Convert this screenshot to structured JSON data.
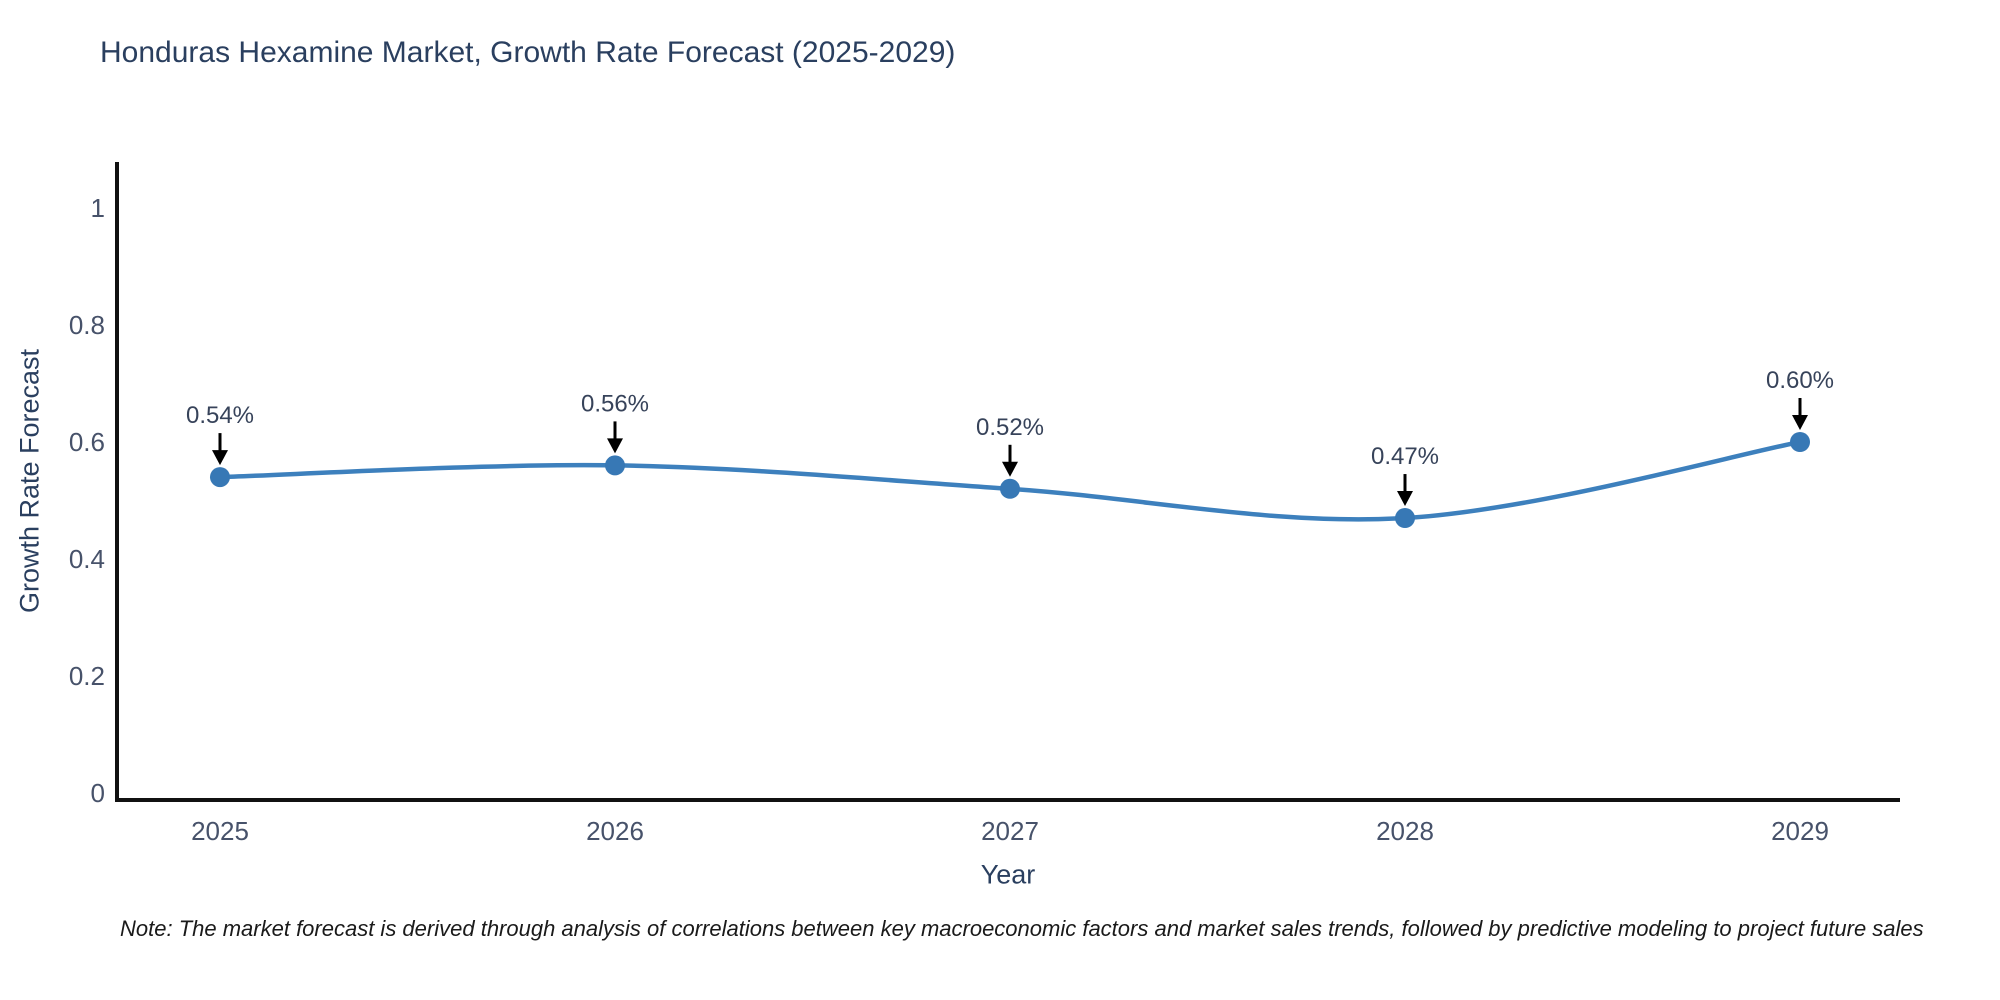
{
  "title": "Honduras Hexamine Market, Growth Rate Forecast (2025-2029)",
  "footnote": "Note: The market forecast is derived through analysis of correlations between key macroeconomic factors and market sales trends, followed by predictive modeling to project future sales",
  "chart_data": {
    "type": "line",
    "title": "Honduras Hexamine Market, Growth Rate Forecast (2025-2029)",
    "xlabel": "Year",
    "ylabel": "Growth Rate Forecast",
    "categories": [
      "2025",
      "2026",
      "2027",
      "2028",
      "2029"
    ],
    "values": [
      0.54,
      0.56,
      0.52,
      0.47,
      0.6
    ],
    "point_labels": [
      "0.54%",
      "0.56%",
      "0.52%",
      "0.47%",
      "0.60%"
    ],
    "yticks": [
      0,
      0.2,
      0.4,
      0.6,
      0.8,
      1
    ],
    "ylim": [
      0,
      1.08
    ],
    "grid": false,
    "legend": "none",
    "line_color": "#3d80bd",
    "marker_color": "#3778b5",
    "axis_color": "#111111",
    "tick_color": "#47526a",
    "annotation_color": "#37435a",
    "arrow_color": "#000000"
  }
}
